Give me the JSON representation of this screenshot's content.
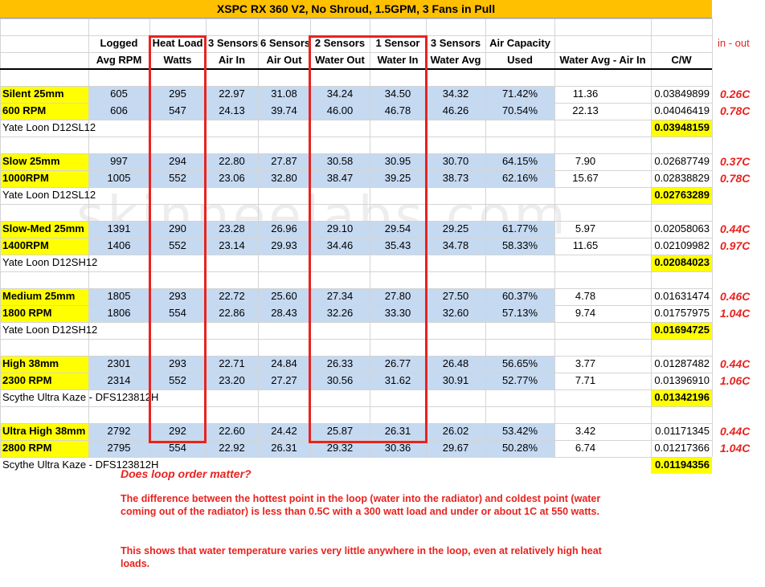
{
  "title": "XSPC RX 360 V2, No Shroud, 1.5GPM, 3 Fans in Pull",
  "header_row1": [
    "",
    "Logged",
    "Heat Load",
    "3 Sensors",
    "6 Sensors",
    "2 Sensors",
    "1 Sensor",
    "3 Sensors",
    "Air Capacity",
    "",
    ""
  ],
  "header_row2": [
    "",
    "Avg RPM",
    "Watts",
    "Air In",
    "Air Out",
    "Water Out",
    "Water In",
    "Water Avg",
    "Used",
    "Water Avg - Air In",
    "C/W"
  ],
  "side_header": "in - out",
  "groups": [
    {
      "rows": [
        {
          "label": "Silent 25mm",
          "cells": [
            "605",
            "295",
            "22.97",
            "31.08",
            "34.24",
            "34.50",
            "34.32",
            "71.42%",
            "11.36",
            "0.03849899"
          ],
          "delta": "0.26C"
        },
        {
          "label": "600 RPM",
          "cells": [
            "606",
            "547",
            "24.13",
            "39.74",
            "46.00",
            "46.78",
            "46.26",
            "70.54%",
            "22.13",
            "0.04046419"
          ],
          "delta": "0.78C"
        }
      ],
      "fan": "Yate Loon D12SL12",
      "avg_cw": "0.03948159"
    },
    {
      "rows": [
        {
          "label": "Slow 25mm",
          "cells": [
            "997",
            "294",
            "22.80",
            "27.87",
            "30.58",
            "30.95",
            "30.70",
            "64.15%",
            "7.90",
            "0.02687749"
          ],
          "delta": "0.37C"
        },
        {
          "label": "1000RPM",
          "cells": [
            "1005",
            "552",
            "23.06",
            "32.80",
            "38.47",
            "39.25",
            "38.73",
            "62.16%",
            "15.67",
            "0.02838829"
          ],
          "delta": "0.78C"
        }
      ],
      "fan": "Yate Loon D12SL12",
      "avg_cw": "0.02763289"
    },
    {
      "rows": [
        {
          "label": "Slow-Med 25mm",
          "cells": [
            "1391",
            "290",
            "23.28",
            "26.96",
            "29.10",
            "29.54",
            "29.25",
            "61.77%",
            "5.97",
            "0.02058063"
          ],
          "delta": "0.44C"
        },
        {
          "label": "1400RPM",
          "cells": [
            "1406",
            "552",
            "23.14",
            "29.93",
            "34.46",
            "35.43",
            "34.78",
            "58.33%",
            "11.65",
            "0.02109982"
          ],
          "delta": "0.97C"
        }
      ],
      "fan": "Yate Loon D12SH12",
      "avg_cw": "0.02084023"
    },
    {
      "rows": [
        {
          "label": "Medium 25mm",
          "cells": [
            "1805",
            "293",
            "22.72",
            "25.60",
            "27.34",
            "27.80",
            "27.50",
            "60.37%",
            "4.78",
            "0.01631474"
          ],
          "delta": "0.46C"
        },
        {
          "label": "1800 RPM",
          "cells": [
            "1806",
            "554",
            "22.86",
            "28.43",
            "32.26",
            "33.30",
            "32.60",
            "57.13%",
            "9.74",
            "0.01757975"
          ],
          "delta": "1.04C"
        }
      ],
      "fan": "Yate Loon D12SH12",
      "avg_cw": "0.01694725"
    },
    {
      "rows": [
        {
          "label": "High 38mm",
          "cells": [
            "2301",
            "293",
            "22.71",
            "24.84",
            "26.33",
            "26.77",
            "26.48",
            "56.65%",
            "3.77",
            "0.01287482"
          ],
          "delta": "0.44C"
        },
        {
          "label": "2300 RPM",
          "cells": [
            "2314",
            "552",
            "23.20",
            "27.27",
            "30.56",
            "31.62",
            "30.91",
            "52.77%",
            "7.71",
            "0.01396910"
          ],
          "delta": "1.06C"
        }
      ],
      "fan": "Scythe Ultra Kaze - DFS123812H",
      "avg_cw": "0.01342196"
    },
    {
      "rows": [
        {
          "label": "Ultra High 38mm",
          "cells": [
            "2792",
            "292",
            "22.60",
            "24.42",
            "25.87",
            "26.31",
            "26.02",
            "53.42%",
            "3.42",
            "0.01171345"
          ],
          "delta": "0.44C"
        },
        {
          "label": "2800 RPM",
          "cells": [
            "2795",
            "554",
            "22.92",
            "26.31",
            "29.32",
            "30.36",
            "29.67",
            "50.28%",
            "6.74",
            "0.01217366"
          ],
          "delta": "1.04C"
        }
      ],
      "fan": "Scythe Ultra Kaze - DFS123812H",
      "avg_cw": "0.01194356"
    }
  ],
  "notes": {
    "heading": "Does loop order matter?",
    "para1": "The difference between the hottest point in the loop (water into the radiator) and coldest point (water coming out of the radiator) is less than 0.5C with a 300 watt load and under or about 1C at 550 watts.",
    "para2": "This shows that water temperature varies very little anywhere in the loop, even at relatively high heat loads."
  },
  "watermark": "skinneelabs.com",
  "colors": {
    "title_bg": "#ffc000",
    "label_bg": "#ffff00",
    "data_bg": "#c5d9f1",
    "highlight_box": "#e8231f",
    "note_text": "#e8231f"
  }
}
